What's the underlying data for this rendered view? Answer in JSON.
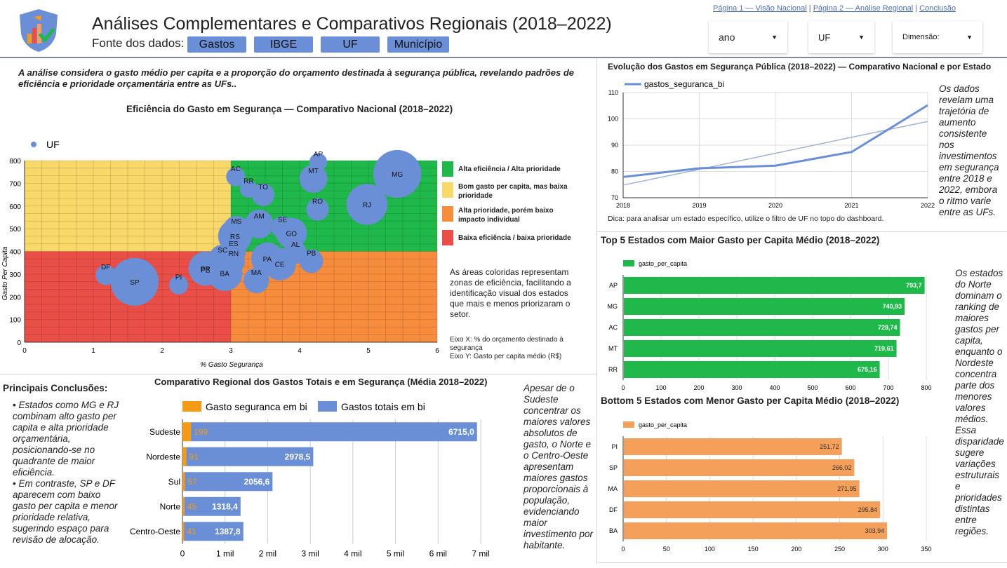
{
  "header": {
    "title": "Análises Complementares e Comparativos Regionais (2018–2022)",
    "source_label": "Fonte dos dados:",
    "source_chips": [
      "Gastos",
      "IBGE",
      "UF",
      "Município"
    ],
    "nav": {
      "page1": "Página 1 — Visão Nacional",
      "sep1": " | ",
      "page2": "Página 2 — Análise Regional",
      "sep2": " | ",
      "conclusion": "Conclusão"
    },
    "filters": {
      "ano": "ano",
      "uf": "UF",
      "dimensao": "Dimensão:"
    },
    "logo_icon": "shield-chart-check-icon"
  },
  "intro": "A análise considera o gasto médio per capita e a proporção do orçamento destinada à segurança pública, revelando padrões de eficiência e prioridade orçamentária entre as UFs..",
  "scatter": {
    "title": "Eficiência do Gasto em Segurança — Comparativo Nacional (2018–2022)",
    "legend": "UF",
    "xlabel": "% Gasto Segurança",
    "ylabel": "Gasto Per Capita",
    "zones": [
      {
        "label": "Alta eficiência / Alta prioridade",
        "color": "#1fb84a"
      },
      {
        "label": "Bom gasto per capita, mas baixa prioridade",
        "color": "#f9d86a"
      },
      {
        "label": "Alta prioridade, porém baixo impacto individual",
        "color": "#f68c3c"
      },
      {
        "label": "Baixa eficiência / baixa prioridade",
        "color": "#ea4f47"
      }
    ],
    "note": "As áreas coloridas representam zonas de eficiência, facilitando a identificação visual dos estados que mais e menos priorizaram o setor.",
    "axis_note_x": "Eixo X: % do orçamento destinado à segurança",
    "axis_note_y": "Eixo Y: Gasto per capita médio (R$)"
  },
  "line": {
    "title": "Evolução dos Gastos em Segurança Pública (2018–2022) — Comparativo Nacional e por Estado",
    "tip": "Dica: para analisar um estado específico, utilize o filtro de UF no topo do dashboard.",
    "comment": "Os dados revelam uma trajetória de aumento consistente nos investimentos em segurança entre 2018 e 2022, embora o ritmo varie entre as UFs."
  },
  "top5": {
    "title": "Top 5 Estados com Maior Gasto per Capita Médio (2018–2022)",
    "comment": "Os estados do Norte dominam o ranking de maiores gastos per capita, enquanto o Nordeste concentra parte dos menores valores médios. Essa disparidade sugere variações estruturais e prioridades distintas entre regiões."
  },
  "bottom5": {
    "title": "Bottom 5 Estados com Menor Gasto per Capita Médio (2018–2022)"
  },
  "regional": {
    "title": "Comparativo Regional dos Gastos Totais e em Segurança (Média 2018–2022)",
    "comment": "Apesar de o Sudeste concentrar os maiores valores absolutos de gasto, o Norte e o Centro-Oeste apresentam maiores gastos proporcionais à população, evidenciando maior investimento por habitante."
  },
  "conclusions": {
    "title": "Principais Conclusões:",
    "items": [
      "• Estados como MG e RJ combinam alto gasto per capita e alta prioridade orçamentária, posicionando-se no quadrante de maior eficiência.",
      "• Em contraste, SP e DF aparecem com baixo gasto per capita e menor prioridade relativa, sugerindo espaço para revisão de alocação."
    ]
  },
  "chart_data": [
    {
      "type": "scatter",
      "title": "Eficiência do Gasto em Segurança — Comparativo Nacional (2018–2022)",
      "xlabel": "% Gasto Segurança",
      "ylabel": "Gasto Per Capita",
      "xlim": [
        0,
        6
      ],
      "ylim": [
        0,
        800
      ],
      "xticks": [
        0,
        1,
        2,
        3,
        4,
        5,
        6
      ],
      "yticks": [
        0,
        100,
        200,
        300,
        400,
        500,
        600,
        700,
        800
      ],
      "series": [
        {
          "name": "UF",
          "color": "#6a8fd6"
        }
      ],
      "points": [
        {
          "label": "AC",
          "x": 3.07,
          "y": 729,
          "size": 0.5
        },
        {
          "label": "RR",
          "x": 3.26,
          "y": 675,
          "size": 0.4
        },
        {
          "label": "TO",
          "x": 3.47,
          "y": 649,
          "size": 0.8
        },
        {
          "label": "MT",
          "x": 4.2,
          "y": 720,
          "size": 1.4
        },
        {
          "label": "AP",
          "x": 4.27,
          "y": 794,
          "size": 0.4
        },
        {
          "label": "MG",
          "x": 5.42,
          "y": 741,
          "size": 5.0
        },
        {
          "label": "RJ",
          "x": 4.98,
          "y": 607,
          "size": 3.5
        },
        {
          "label": "RO",
          "x": 4.26,
          "y": 585,
          "size": 0.8
        },
        {
          "label": "AM",
          "x": 3.41,
          "y": 520,
          "size": 1.5
        },
        {
          "label": "SE",
          "x": 3.75,
          "y": 505,
          "size": 0.8
        },
        {
          "label": "GO",
          "x": 3.88,
          "y": 480,
          "size": 1.8
        },
        {
          "label": "MS",
          "x": 3.08,
          "y": 498,
          "size": 1.2
        },
        {
          "label": "RS",
          "x": 3.06,
          "y": 467,
          "size": 2.2
        },
        {
          "label": "ES",
          "x": 3.04,
          "y": 398,
          "size": 1.0
        },
        {
          "label": "SC",
          "x": 2.88,
          "y": 370,
          "size": 1.3
        },
        {
          "label": "RN",
          "x": 3.04,
          "y": 355,
          "size": 0.8
        },
        {
          "label": "PR",
          "x": 2.63,
          "y": 325,
          "size": 2.2
        },
        {
          "label": "PE",
          "x": 2.63,
          "y": 320,
          "size": 2.0
        },
        {
          "label": "BA",
          "x": 2.91,
          "y": 304,
          "size": 2.5
        },
        {
          "label": "PA",
          "x": 3.53,
          "y": 368,
          "size": 2.0
        },
        {
          "label": "CE",
          "x": 3.71,
          "y": 344,
          "size": 2.0
        },
        {
          "label": "AL",
          "x": 3.94,
          "y": 395,
          "size": 0.8
        },
        {
          "label": "PB",
          "x": 4.17,
          "y": 357,
          "size": 0.9
        },
        {
          "label": "MA",
          "x": 3.37,
          "y": 272,
          "size": 1.1
        },
        {
          "label": "DF",
          "x": 1.18,
          "y": 296,
          "size": 0.6
        },
        {
          "label": "SP",
          "x": 1.6,
          "y": 266,
          "size": 5.0
        },
        {
          "label": "PI",
          "x": 2.24,
          "y": 252,
          "size": 0.5
        }
      ],
      "thresholds": {
        "x": 3,
        "y": 400
      }
    },
    {
      "type": "line",
      "title": "Evolução dos Gastos em Segurança Pública (2018–2022) — Comparativo Nacional e por Estado",
      "x": [
        2018,
        2019,
        2020,
        2021,
        2022
      ],
      "ylim": [
        70,
        110
      ],
      "yticks": [
        70,
        80,
        90,
        100,
        110
      ],
      "series": [
        {
          "name": "gastos_seguranca_bi",
          "values": [
            77.9,
            81.2,
            82.2,
            87.4,
            105.2
          ],
          "color": "#6a8fd6"
        }
      ],
      "trendline": {
        "values": [
          74.8,
          80.8,
          86.9,
          93.0,
          99.0
        ],
        "color": "#a3b3d3"
      }
    },
    {
      "type": "bar",
      "title": "Top 5 Estados com Maior Gasto per Capita Médio (2018–2022)",
      "categories": [
        "AP",
        "MG",
        "AC",
        "MT",
        "RR"
      ],
      "series": [
        {
          "name": "gasto_per_capita",
          "values": [
            793.7,
            740.93,
            728.74,
            719.61,
            675.16
          ],
          "color": "#1fb84a"
        }
      ],
      "labels": [
        "793,7",
        "740,93",
        "728,74",
        "719,61",
        "675,16"
      ],
      "xlim": [
        0,
        800
      ],
      "xticks": [
        0,
        100,
        200,
        300,
        400,
        500,
        600,
        700,
        800
      ]
    },
    {
      "type": "bar",
      "title": "Bottom 5 Estados com Menor Gasto per Capita Médio (2018–2022)",
      "categories": [
        "PI",
        "SP",
        "MA",
        "DF",
        "BA"
      ],
      "series": [
        {
          "name": "gasto_per_capita",
          "values": [
            251.72,
            266.02,
            271.95,
            295.84,
            303.94
          ],
          "color": "#f5a05a"
        }
      ],
      "labels": [
        "251,72",
        "266,02",
        "271,95",
        "295,84",
        "303,94"
      ],
      "xlim": [
        0,
        350
      ],
      "xticks": [
        0,
        50,
        100,
        150,
        200,
        250,
        300,
        350
      ]
    },
    {
      "type": "bar",
      "title": "Comparativo Regional dos Gastos Totais e em Segurança (Média 2018–2022)",
      "categories": [
        "Sudeste",
        "Nordeste",
        "Sul",
        "Norte",
        "Centro-Oeste"
      ],
      "series": [
        {
          "name": "Gastos totais em bi",
          "values": [
            6715.0,
            2978.5,
            2056.6,
            1318.4,
            1387.8
          ],
          "labels": [
            "6715,0",
            "2978,5",
            "2056,6",
            "1318,4",
            "1387,8"
          ],
          "color": "#6a8fd6"
        },
        {
          "name": "Gasto seguranca em bi",
          "values": [
            199,
            91,
            57,
            45,
            41
          ],
          "labels": [
            "199",
            "91",
            "57",
            "45",
            "41"
          ],
          "color": "#f59a14"
        }
      ],
      "xlim": [
        0,
        7000
      ],
      "xticks": [
        0,
        1000,
        2000,
        3000,
        4000,
        5000,
        6000,
        7000
      ],
      "xticklabels": [
        "0",
        "1 mil",
        "2 mil",
        "3 mil",
        "4 mil",
        "5 mil",
        "6 mil",
        "7 mil"
      ]
    }
  ]
}
